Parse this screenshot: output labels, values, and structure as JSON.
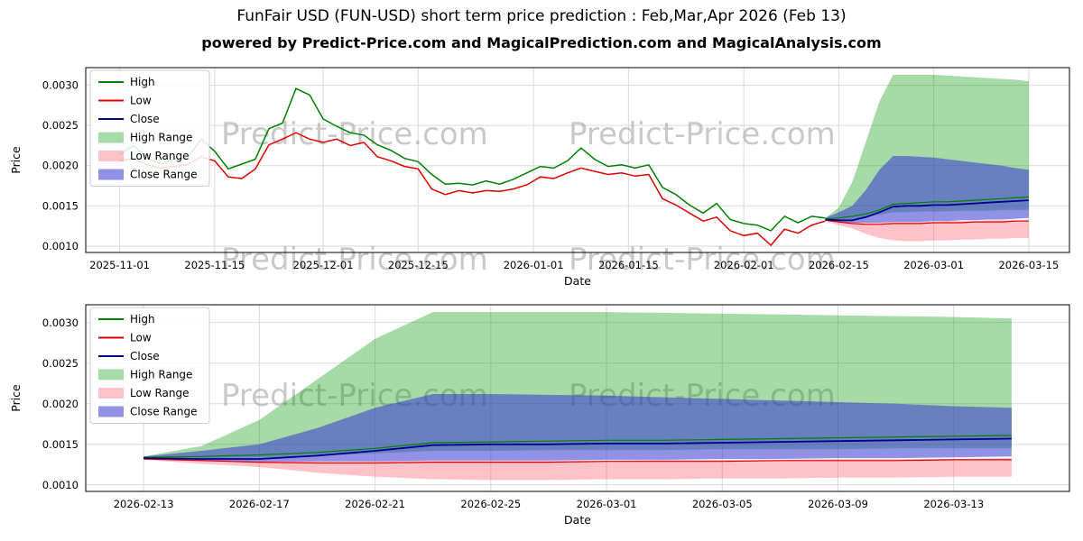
{
  "title": "FunFair USD (FUN-USD) short term price prediction : Feb,Mar,Apr 2026 (Feb 13)",
  "subtitle": "powered by Predict-Price.com and MagicalPrediction.com and MagicalAnalysis.com",
  "watermark": "Predict-Price.com",
  "colors": {
    "high_line": "#008000",
    "low_line": "#dd0000",
    "close_line": "#00008b",
    "high_range_fill": "rgba(0,150,0,0.35)",
    "low_range_fill": "rgba(255,80,100,0.35)",
    "close_range_fill": "rgba(55,55,210,0.55)",
    "grid": "#d9d9d9",
    "watermark_color": "#9e9e9e"
  },
  "chart_data": [
    {
      "type": "line",
      "title": "",
      "xlabel": "Date",
      "ylabel": "Price",
      "ylim": [
        0.00092,
        0.00322
      ],
      "yticks": [
        0.001,
        0.0015,
        0.002,
        0.0025,
        0.003
      ],
      "xrange": [
        "2025-10-27",
        "2026-03-21"
      ],
      "xticks": [
        "2025-11-01",
        "2025-11-15",
        "2025-12-01",
        "2025-12-15",
        "2026-01-01",
        "2026-01-15",
        "2026-02-01",
        "2026-02-15",
        "2026-03-01",
        "2026-03-15"
      ],
      "legend": [
        "High",
        "Low",
        "Close",
        "High Range",
        "Low Range",
        "Close Range"
      ],
      "history": {
        "dates": [
          "2025-11-01",
          "2025-11-03",
          "2025-11-05",
          "2025-11-07",
          "2025-11-09",
          "2025-11-11",
          "2025-11-13",
          "2025-11-15",
          "2025-11-17",
          "2025-11-19",
          "2025-11-21",
          "2025-11-23",
          "2025-11-25",
          "2025-11-27",
          "2025-11-29",
          "2025-12-01",
          "2025-12-03",
          "2025-12-05",
          "2025-12-07",
          "2025-12-09",
          "2025-12-11",
          "2025-12-13",
          "2025-12-15",
          "2025-12-17",
          "2025-12-19",
          "2025-12-21",
          "2025-12-23",
          "2025-12-25",
          "2025-12-27",
          "2025-12-29",
          "2025-12-31",
          "2026-01-02",
          "2026-01-04",
          "2026-01-06",
          "2026-01-08",
          "2026-01-10",
          "2026-01-12",
          "2026-01-14",
          "2026-01-16",
          "2026-01-18",
          "2026-01-20",
          "2026-01-22",
          "2026-01-24",
          "2026-01-26",
          "2026-01-28",
          "2026-01-30",
          "2026-02-01",
          "2026-02-03",
          "2026-02-05",
          "2026-02-07",
          "2026-02-09",
          "2026-02-11",
          "2026-02-13"
        ],
        "high": [
          0.00214,
          0.00225,
          0.0021,
          0.00202,
          0.00208,
          0.0021,
          0.00233,
          0.00218,
          0.00196,
          0.00202,
          0.00208,
          0.00246,
          0.00253,
          0.00296,
          0.00288,
          0.00258,
          0.00249,
          0.00241,
          0.00238,
          0.00226,
          0.00219,
          0.00209,
          0.00205,
          0.00189,
          0.00177,
          0.00178,
          0.00176,
          0.00181,
          0.00177,
          0.00183,
          0.00191,
          0.00199,
          0.00197,
          0.00206,
          0.00222,
          0.00208,
          0.00199,
          0.00201,
          0.00197,
          0.00201,
          0.00173,
          0.00164,
          0.00151,
          0.00141,
          0.00153,
          0.00133,
          0.00128,
          0.00126,
          0.00119,
          0.00137,
          0.00129,
          0.00137,
          0.00135
        ],
        "low": [
          0.00206,
          0.00209,
          0.00201,
          0.00197,
          0.00199,
          0.00201,
          0.00211,
          0.00206,
          0.00186,
          0.00184,
          0.00196,
          0.00226,
          0.00233,
          0.00241,
          0.00233,
          0.00229,
          0.00233,
          0.00225,
          0.00229,
          0.00211,
          0.00206,
          0.00199,
          0.00196,
          0.00171,
          0.00164,
          0.00169,
          0.00166,
          0.00169,
          0.00168,
          0.00171,
          0.00176,
          0.00186,
          0.00184,
          0.00191,
          0.00197,
          0.00193,
          0.00189,
          0.00191,
          0.00187,
          0.00189,
          0.00159,
          0.00151,
          0.00141,
          0.00131,
          0.00136,
          0.00119,
          0.00113,
          0.00116,
          0.00101,
          0.00121,
          0.00116,
          0.00126,
          0.00131
        ]
      },
      "forecast": {
        "dates": [
          "2026-02-13",
          "2026-02-15",
          "2026-02-17",
          "2026-02-19",
          "2026-02-21",
          "2026-02-23",
          "2026-02-25",
          "2026-02-27",
          "2026-03-01",
          "2026-03-03",
          "2026-03-05",
          "2026-03-07",
          "2026-03-09",
          "2026-03-11",
          "2026-03-13",
          "2026-03-15"
        ],
        "close": [
          0.00133,
          0.00132,
          0.00132,
          0.00136,
          0.00142,
          0.00149,
          0.0015,
          0.0015,
          0.00151,
          0.00151,
          0.00152,
          0.00153,
          0.00154,
          0.00155,
          0.00156,
          0.00157
        ],
        "high": [
          0.00134,
          0.00135,
          0.00137,
          0.0014,
          0.00145,
          0.00152,
          0.00153,
          0.00154,
          0.00155,
          0.00155,
          0.00156,
          0.00157,
          0.00158,
          0.00159,
          0.0016,
          0.00161
        ],
        "low": [
          0.00132,
          0.0013,
          0.00128,
          0.00127,
          0.00127,
          0.00128,
          0.00128,
          0.00128,
          0.00129,
          0.00129,
          0.00129,
          0.0013,
          0.0013,
          0.0013,
          0.00131,
          0.00131
        ],
        "high_range_upper": [
          0.00135,
          0.00148,
          0.0018,
          0.0023,
          0.0028,
          0.00313,
          0.00313,
          0.00313,
          0.00313,
          0.00312,
          0.00311,
          0.0031,
          0.00309,
          0.00308,
          0.00307,
          0.00305
        ],
        "high_range_lower": [
          0.00133,
          0.00133,
          0.00134,
          0.00136,
          0.00139,
          0.00142,
          0.00142,
          0.00143,
          0.00143,
          0.00143,
          0.00144,
          0.00144,
          0.00144,
          0.00145,
          0.00145,
          0.00145
        ],
        "low_range_upper": [
          0.00133,
          0.00131,
          0.0013,
          0.00129,
          0.00129,
          0.0013,
          0.0013,
          0.0013,
          0.0013,
          0.00131,
          0.00131,
          0.00131,
          0.00132,
          0.00132,
          0.00132,
          0.00133
        ],
        "low_range_lower": [
          0.00131,
          0.00126,
          0.00122,
          0.00115,
          0.0011,
          0.00107,
          0.00106,
          0.00106,
          0.00107,
          0.00107,
          0.00108,
          0.00108,
          0.00109,
          0.00109,
          0.0011,
          0.0011
        ],
        "close_range_upper": [
          0.00135,
          0.00142,
          0.0015,
          0.0017,
          0.00195,
          0.00212,
          0.00212,
          0.00211,
          0.0021,
          0.00208,
          0.00206,
          0.00204,
          0.00202,
          0.002,
          0.00197,
          0.00195
        ],
        "close_range_lower": [
          0.00132,
          0.0013,
          0.00129,
          0.00129,
          0.00129,
          0.0013,
          0.0013,
          0.0013,
          0.00131,
          0.00131,
          0.00132,
          0.00132,
          0.00133,
          0.00133,
          0.00134,
          0.00135
        ]
      }
    },
    {
      "type": "line",
      "title": "",
      "xlabel": "Date",
      "ylabel": "Price",
      "ylim": [
        0.00092,
        0.00322
      ],
      "yticks": [
        0.001,
        0.0015,
        0.002,
        0.0025,
        0.003
      ],
      "xrange": [
        "2026-02-11",
        "2026-03-17"
      ],
      "xticks": [
        "2026-02-13",
        "2026-02-17",
        "2026-02-21",
        "2026-02-25",
        "2026-03-01",
        "2026-03-05",
        "2026-03-09",
        "2026-03-13"
      ],
      "legend": [
        "High",
        "Low",
        "Close",
        "High Range",
        "Low Range",
        "Close Range"
      ],
      "history": null,
      "forecast": {
        "dates": [
          "2026-02-13",
          "2026-02-15",
          "2026-02-17",
          "2026-02-19",
          "2026-02-21",
          "2026-02-23",
          "2026-02-25",
          "2026-02-27",
          "2026-03-01",
          "2026-03-03",
          "2026-03-05",
          "2026-03-07",
          "2026-03-09",
          "2026-03-11",
          "2026-03-13",
          "2026-03-15"
        ],
        "close": [
          0.00133,
          0.00132,
          0.00132,
          0.00136,
          0.00142,
          0.00149,
          0.0015,
          0.0015,
          0.00151,
          0.00151,
          0.00152,
          0.00153,
          0.00154,
          0.00155,
          0.00156,
          0.00157
        ],
        "high": [
          0.00134,
          0.00135,
          0.00137,
          0.0014,
          0.00145,
          0.00152,
          0.00153,
          0.00154,
          0.00155,
          0.00155,
          0.00156,
          0.00157,
          0.00158,
          0.00159,
          0.0016,
          0.00161
        ],
        "low": [
          0.00132,
          0.0013,
          0.00128,
          0.00127,
          0.00127,
          0.00128,
          0.00128,
          0.00128,
          0.00129,
          0.00129,
          0.00129,
          0.0013,
          0.0013,
          0.0013,
          0.00131,
          0.00131
        ],
        "high_range_upper": [
          0.00135,
          0.00148,
          0.0018,
          0.0023,
          0.0028,
          0.00313,
          0.00313,
          0.00313,
          0.00313,
          0.00312,
          0.00311,
          0.0031,
          0.00309,
          0.00308,
          0.00307,
          0.00305
        ],
        "high_range_lower": [
          0.00133,
          0.00133,
          0.00134,
          0.00136,
          0.00139,
          0.00142,
          0.00142,
          0.00143,
          0.00143,
          0.00143,
          0.00144,
          0.00144,
          0.00144,
          0.00145,
          0.00145,
          0.00145
        ],
        "low_range_upper": [
          0.00133,
          0.00131,
          0.0013,
          0.00129,
          0.00129,
          0.0013,
          0.0013,
          0.0013,
          0.0013,
          0.00131,
          0.00131,
          0.00131,
          0.00132,
          0.00132,
          0.00132,
          0.00133
        ],
        "low_range_lower": [
          0.00131,
          0.00126,
          0.00122,
          0.00115,
          0.0011,
          0.00107,
          0.00106,
          0.00106,
          0.00107,
          0.00107,
          0.00108,
          0.00108,
          0.00109,
          0.00109,
          0.0011,
          0.0011
        ],
        "close_range_upper": [
          0.00135,
          0.00142,
          0.0015,
          0.0017,
          0.00195,
          0.00212,
          0.00212,
          0.00211,
          0.0021,
          0.00208,
          0.00206,
          0.00204,
          0.00202,
          0.002,
          0.00197,
          0.00195
        ],
        "close_range_lower": [
          0.00132,
          0.0013,
          0.00129,
          0.00129,
          0.00129,
          0.0013,
          0.0013,
          0.0013,
          0.00131,
          0.00131,
          0.00132,
          0.00132,
          0.00133,
          0.00133,
          0.00134,
          0.00135
        ]
      }
    }
  ]
}
